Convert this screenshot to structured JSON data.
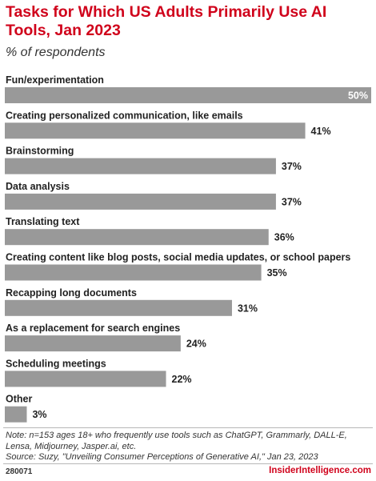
{
  "title": "Tasks for Which US Adults Primarily Use AI Tools, Jan 2023",
  "subtitle": "% of respondents",
  "chart_data": {
    "type": "bar",
    "orientation": "horizontal",
    "categories": [
      "Fun/experimentation",
      "Creating personalized communication, like emails",
      "Brainstorming",
      "Data analysis",
      "Translating text",
      "Creating content like blog posts, social media updates, or school papers",
      "Recapping long documents",
      "As a replacement for search engines",
      "Scheduling meetings",
      "Other"
    ],
    "values": [
      50,
      41,
      37,
      37,
      36,
      35,
      31,
      24,
      22,
      3
    ],
    "value_labels": [
      "50%",
      "41%",
      "37%",
      "37%",
      "36%",
      "35%",
      "31%",
      "24%",
      "22%",
      "3%"
    ],
    "xlim": [
      0,
      50
    ],
    "bar_color": "#999999",
    "grid": false,
    "legend": "none"
  },
  "note": "Note: n=153 ages 18+ who frequently use tools such as ChatGPT, Grammarly, DALL-E, Lensa, Midjourney, Jasper.ai, etc.",
  "source": "Source: Suzy, \"Unveiling Consumer Perceptions of Generative AI,\" Jan 23, 2023",
  "footer": {
    "chart_id": "280071",
    "brand": "InsiderIntelligence.com"
  },
  "colors": {
    "accent": "#d0021b",
    "bar": "#999999"
  }
}
